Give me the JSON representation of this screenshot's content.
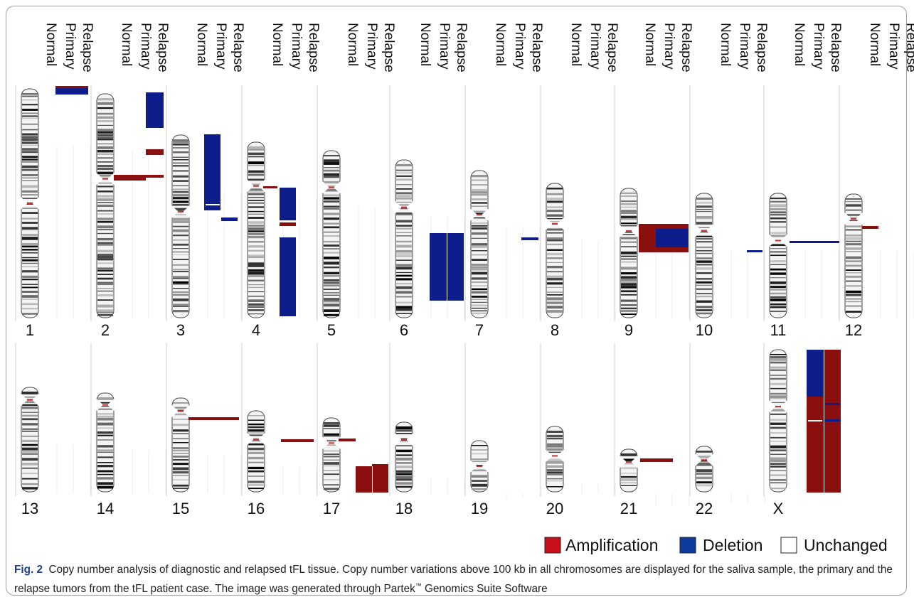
{
  "column_headers": [
    "Normal",
    "Primary",
    "Relapse"
  ],
  "chromosomes": [
    "1",
    "2",
    "3",
    "4",
    "5",
    "6",
    "7",
    "8",
    "9",
    "10",
    "11",
    "12",
    "13",
    "14",
    "15",
    "16",
    "17",
    "18",
    "19",
    "20",
    "21",
    "22",
    "X"
  ],
  "legend": [
    "Amplification",
    "Deletion",
    "Unchanged"
  ],
  "caption": {
    "label": "Fig. 2",
    "text_before": "Copy number analysis of diagnostic and relapsed tFL tissue. Copy number variations above 100 kb in all chromosomes are displayed for the saliva sample, the primary and the relapse tumors from the tFL patient case. The image was generated through Partek",
    "trademark": "™",
    "text_after": " Genomics Suite Software"
  }
}
